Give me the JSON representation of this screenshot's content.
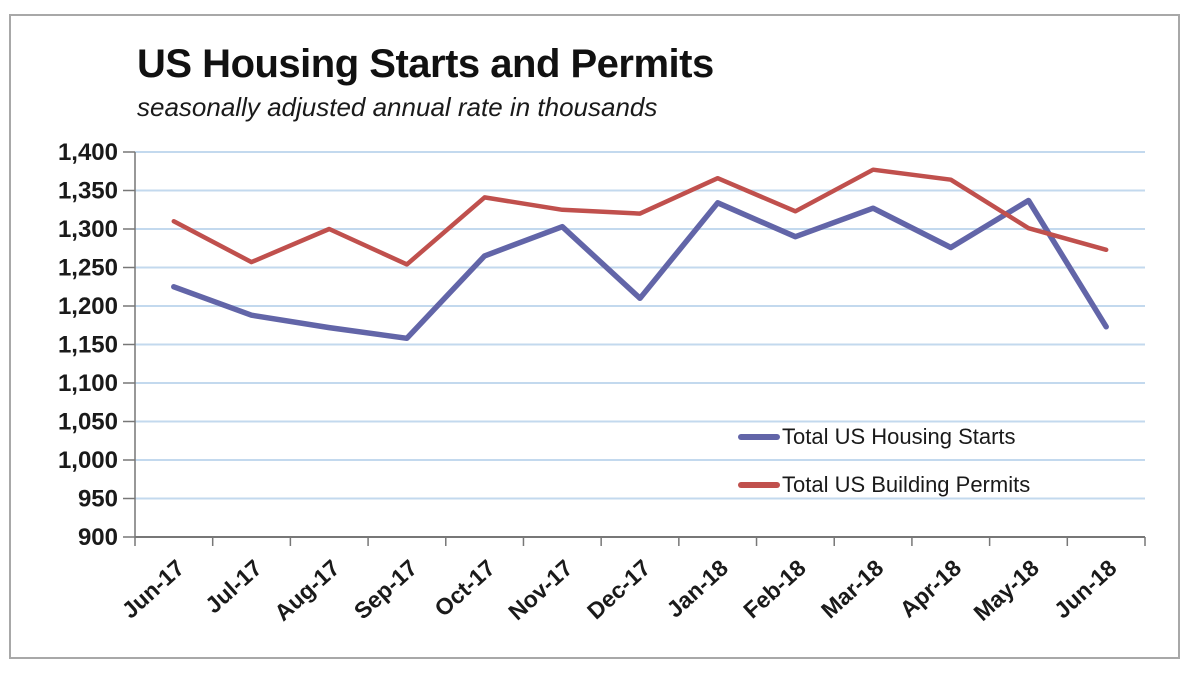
{
  "chart": {
    "title": "US Housing Starts and Permits",
    "subtitle": "seasonally adjusted annual rate in thousands"
  },
  "chart_data": {
    "type": "line",
    "title": "US Housing Starts and Permits",
    "subtitle": "seasonally adjusted annual rate in thousands",
    "categories": [
      "Jun-17",
      "Jul-17",
      "Aug-17",
      "Sep-17",
      "Oct-17",
      "Nov-17",
      "Dec-17",
      "Jan-18",
      "Feb-18",
      "Mar-18",
      "Apr-18",
      "May-18",
      "Jun-18"
    ],
    "series": [
      {
        "name": "Total US Housing Starts",
        "color": "#6265A8",
        "stroke_width": 5.5,
        "values": [
          1225,
          1188,
          1172,
          1158,
          1265,
          1303,
          1210,
          1334,
          1290,
          1327,
          1276,
          1337,
          1173
        ]
      },
      {
        "name": "Total US Building Permits",
        "color": "#C0504D",
        "stroke_width": 4.5,
        "values": [
          1310,
          1257,
          1300,
          1254,
          1341,
          1325,
          1320,
          1366,
          1323,
          1377,
          1364,
          1301,
          1273
        ]
      }
    ],
    "xlabel": "",
    "ylabel": "",
    "ylim": [
      900,
      1400
    ],
    "ytick_step": 50,
    "grid": "horizontal-major-only",
    "legend_position": "inside-lower-right",
    "x_label_rotation_deg": -42,
    "colors": {
      "gridline": "#C3D9EE",
      "axis": "#777777",
      "tick_text": "#1a1a1a",
      "frame_border": "#a8a8a8"
    }
  }
}
